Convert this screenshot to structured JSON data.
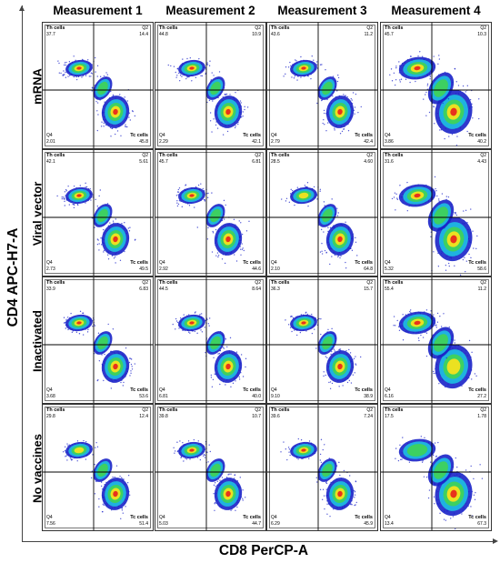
{
  "columns": [
    "Measurement 1",
    "Measurement 2",
    "Measurement 3",
    "Measurement 4"
  ],
  "rows": [
    "mRNA",
    "Viral vector",
    "Inactivated",
    "No vaccines"
  ],
  "y_axis_title": "CD4 APC-H7-A",
  "x_axis_title": "CD8 PerCP-A",
  "colors": {
    "low": "#1a22c8",
    "mid": "#1fb8e0",
    "midhigh": "#3fd25a",
    "high": "#f4e21e",
    "peak": "#e8281c"
  },
  "chart_data": {
    "type": "scatter",
    "panels": [
      {
        "row": "mRNA",
        "column": "Measurement 1",
        "th_label": "Th cells",
        "tc_label": "Tc cells",
        "q2_label": "Q2",
        "q4_label": "Q4",
        "th": "37.7",
        "q2": "14.4",
        "q4": "2.01",
        "tc": "45.8"
      },
      {
        "row": "mRNA",
        "column": "Measurement 2",
        "th_label": "Th cells",
        "tc_label": "Tc cells",
        "q2_label": "Q2",
        "q4_label": "Q4",
        "th": "44.8",
        "q2": "10.9",
        "q4": "2.29",
        "tc": "42.1"
      },
      {
        "row": "mRNA",
        "column": "Measurement 3",
        "th_label": "Th cells",
        "tc_label": "Tc cells",
        "q2_label": "Q2",
        "q4_label": "Q4",
        "th": "43.6",
        "q2": "11.2",
        "q4": "2.79",
        "tc": "42.4"
      },
      {
        "row": "mRNA",
        "column": "Measurement 4",
        "th_label": "Th cells",
        "tc_label": "Tc cells",
        "q2_label": "Q2",
        "q4_label": "Q4",
        "th": "45.7",
        "q2": "10.3",
        "q4": "3.86",
        "tc": "40.2"
      },
      {
        "row": "Viral vector",
        "column": "Measurement 1",
        "th_label": "Th cells",
        "tc_label": "Tc cells",
        "q2_label": "Q2",
        "q4_label": "Q4",
        "th": "42.1",
        "q2": "5.61",
        "q4": "2.73",
        "tc": "49.5"
      },
      {
        "row": "Viral vector",
        "column": "Measurement 2",
        "th_label": "Th cells",
        "tc_label": "Tc cells",
        "q2_label": "Q2",
        "q4_label": "Q4",
        "th": "45.7",
        "q2": "6.81",
        "q4": "2.92",
        "tc": "44.6"
      },
      {
        "row": "Viral vector",
        "column": "Measurement 3",
        "th_label": "Th cells",
        "tc_label": "Tc cells",
        "q2_label": "Q2",
        "q4_label": "Q4",
        "th": "28.5",
        "q2": "4.60",
        "q4": "2.10",
        "tc": "64.8"
      },
      {
        "row": "Viral vector",
        "column": "Measurement 4",
        "th_label": "Th cells",
        "tc_label": "Tc cells",
        "q2_label": "Q2",
        "q4_label": "Q4",
        "th": "31.6",
        "q2": "4.43",
        "q4": "5.32",
        "tc": "58.6"
      },
      {
        "row": "Inactivated",
        "column": "Measurement 1",
        "th_label": "Th cells",
        "tc_label": "Tc cells",
        "q2_label": "Q2",
        "q4_label": "Q4",
        "th": "33.9",
        "q2": "6.83",
        "q4": "3.68",
        "tc": "53.6"
      },
      {
        "row": "Inactivated",
        "column": "Measurement 2",
        "th_label": "Th cells",
        "tc_label": "Tc cells",
        "q2_label": "Q2",
        "q4_label": "Q4",
        "th": "44.5",
        "q2": "8.64",
        "q4": "6.81",
        "tc": "40.0"
      },
      {
        "row": "Inactivated",
        "column": "Measurement 3",
        "th_label": "Th cells",
        "tc_label": "Tc cells",
        "q2_label": "Q2",
        "q4_label": "Q4",
        "th": "36.3",
        "q2": "15.7",
        "q4": "9.10",
        "tc": "38.9"
      },
      {
        "row": "Inactivated",
        "column": "Measurement 4",
        "th_label": "Th cells",
        "tc_label": "Tc cells",
        "q2_label": "Q2",
        "q4_label": "Q4",
        "th": "55.4",
        "q2": "11.2",
        "q4": "6.16",
        "tc": "27.2"
      },
      {
        "row": "No vaccines",
        "column": "Measurement 1",
        "th_label": "Th cells",
        "tc_label": "Tc cells",
        "q2_label": "Q2",
        "q4_label": "Q4",
        "th": "29.8",
        "q2": "12.4",
        "q4": "7.56",
        "tc": "51.4"
      },
      {
        "row": "No vaccines",
        "column": "Measurement 2",
        "th_label": "Th cells",
        "tc_label": "Tc cells",
        "q2_label": "Q2",
        "q4_label": "Q4",
        "th": "39.8",
        "q2": "10.7",
        "q4": "5.03",
        "tc": "44.7"
      },
      {
        "row": "No vaccines",
        "column": "Measurement 3",
        "th_label": "Th cells",
        "tc_label": "Tc cells",
        "q2_label": "Q2",
        "q4_label": "Q4",
        "th": "39.6",
        "q2": "7.24",
        "q4": "6.29",
        "tc": "45.9"
      },
      {
        "row": "No vaccines",
        "column": "Measurement 4",
        "th_label": "Th cells",
        "tc_label": "Tc cells",
        "q2_label": "Q2",
        "q4_label": "Q4",
        "th": "17.5",
        "q2": "1.78",
        "q4": "13.4",
        "tc": "67.3"
      }
    ]
  }
}
